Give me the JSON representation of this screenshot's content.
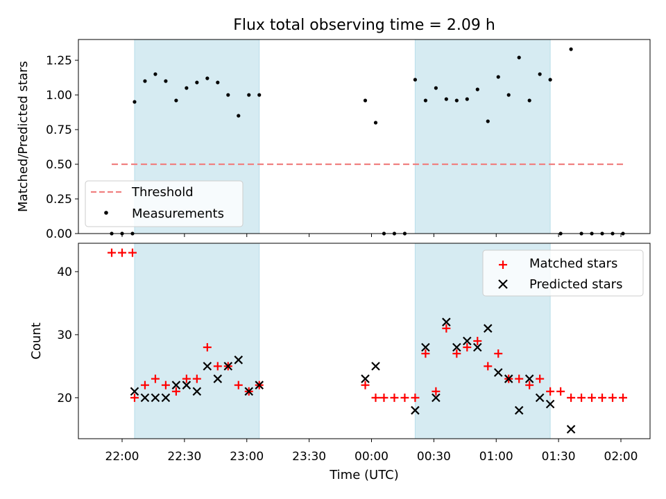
{
  "chart_data": [
    {
      "type": "scatter",
      "title": "Flux total observing time = 2.09 h",
      "ylabel": "Matched/Predicted stars",
      "xlabel": "",
      "ylim": [
        0,
        1.4
      ],
      "y_ticks": [
        "0.00",
        "0.25",
        "0.50",
        "0.75",
        "1.00",
        "1.25"
      ],
      "y_tick_values": [
        0,
        0.25,
        0.5,
        0.75,
        1.0,
        1.25
      ],
      "x_ticks": [
        "22:00",
        "22:30",
        "23:00",
        "23:30",
        "00:00",
        "00:30",
        "01:00",
        "01:30",
        "02:00"
      ],
      "legend": {
        "position": "lower-left",
        "entries": [
          "Threshold",
          "Measurements"
        ]
      },
      "threshold": {
        "name": "Threshold",
        "value": 0.5,
        "x_start": "21:55",
        "x_end": "02:02",
        "color": "#f08080"
      },
      "shaded_regions": [
        [
          "22:06",
          "23:06"
        ],
        [
          "00:21",
          "01:26"
        ]
      ],
      "series": [
        {
          "name": "Measurements",
          "color": "#000000",
          "x": [
            "21:55",
            "22:00",
            "22:05",
            "22:06",
            "22:11",
            "22:16",
            "22:21",
            "22:26",
            "22:31",
            "22:36",
            "22:41",
            "22:46",
            "22:51",
            "22:56",
            "23:01",
            "23:06",
            "23:57",
            "00:02",
            "00:06",
            "00:11",
            "00:16",
            "00:21",
            "00:26",
            "00:31",
            "00:36",
            "00:41",
            "00:46",
            "00:51",
            "00:56",
            "01:01",
            "01:06",
            "01:11",
            "01:16",
            "01:21",
            "01:26",
            "01:31",
            "01:36",
            "01:41",
            "01:46",
            "01:51",
            "01:56",
            "02:01"
          ],
          "y": [
            0,
            0,
            0,
            0.95,
            1.1,
            1.15,
            1.1,
            0.96,
            1.05,
            1.09,
            1.12,
            1.09,
            1.0,
            0.85,
            1.0,
            1.0,
            0.96,
            0.8,
            0,
            0,
            0,
            1.11,
            0.96,
            1.05,
            0.97,
            0.96,
            0.97,
            1.04,
            0.81,
            1.13,
            1.0,
            1.27,
            0.96,
            1.15,
            1.11,
            0,
            1.33,
            0,
            0,
            0,
            0,
            0
          ]
        }
      ]
    },
    {
      "type": "scatter",
      "title": "",
      "ylabel": "Count",
      "xlabel": "Time (UTC)",
      "ylim": [
        13.5,
        44.5
      ],
      "y_ticks": [
        "20",
        "30",
        "40"
      ],
      "y_tick_values": [
        20,
        30,
        40
      ],
      "x_ticks": [
        "22:00",
        "22:30",
        "23:00",
        "23:30",
        "00:00",
        "00:30",
        "01:00",
        "01:30",
        "02:00"
      ],
      "legend": {
        "position": "upper-right",
        "entries": [
          "Matched stars",
          "Predicted stars"
        ]
      },
      "shaded_regions": [
        [
          "22:06",
          "23:06"
        ],
        [
          "00:21",
          "01:26"
        ]
      ],
      "series": [
        {
          "name": "Matched stars",
          "color": "#ff0000",
          "marker": "+",
          "x": [
            "21:55",
            "22:00",
            "22:05",
            "22:06",
            "22:11",
            "22:16",
            "22:21",
            "22:26",
            "22:31",
            "22:36",
            "22:41",
            "22:46",
            "22:51",
            "22:56",
            "23:01",
            "23:06",
            "23:57",
            "00:02",
            "00:06",
            "00:11",
            "00:16",
            "00:21",
            "00:26",
            "00:31",
            "00:36",
            "00:41",
            "00:46",
            "00:51",
            "00:56",
            "01:01",
            "01:06",
            "01:11",
            "01:16",
            "01:21",
            "01:26",
            "01:31",
            "01:36",
            "01:41",
            "01:46",
            "01:51",
            "01:56",
            "02:01"
          ],
          "y": [
            43,
            43,
            43,
            20,
            22,
            23,
            22,
            21,
            23,
            23,
            28,
            25,
            25,
            22,
            21,
            22,
            22,
            20,
            20,
            20,
            20,
            20,
            27,
            21,
            31,
            27,
            28,
            29,
            25,
            27,
            23,
            23,
            22,
            23,
            21,
            21,
            20,
            20,
            20,
            20,
            20,
            20
          ]
        },
        {
          "name": "Predicted stars",
          "color": "#000000",
          "marker": "x",
          "x": [
            "22:06",
            "22:11",
            "22:16",
            "22:21",
            "22:26",
            "22:31",
            "22:36",
            "22:41",
            "22:46",
            "22:51",
            "22:56",
            "23:01",
            "23:06",
            "23:57",
            "00:02",
            "00:21",
            "00:26",
            "00:31",
            "00:36",
            "00:41",
            "00:46",
            "00:51",
            "00:56",
            "01:01",
            "01:06",
            "01:11",
            "01:16",
            "01:21",
            "01:26",
            "01:36"
          ],
          "y": [
            21,
            20,
            20,
            20,
            22,
            22,
            21,
            25,
            23,
            25,
            26,
            21,
            22,
            23,
            25,
            18,
            28,
            20,
            32,
            28,
            29,
            28,
            31,
            24,
            23,
            18,
            23,
            20,
            19,
            15
          ]
        }
      ]
    }
  ]
}
